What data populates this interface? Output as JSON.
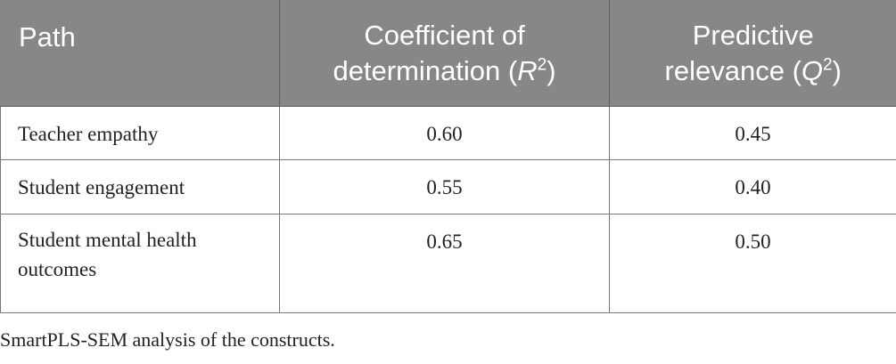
{
  "table": {
    "headers": {
      "path": "Path",
      "r2_prefix": "Coefficient of determination (",
      "r2_symbol": "R",
      "r2_sup": "2",
      "r2_suffix": ")",
      "q2_prefix": "Predictive relevance (",
      "q2_symbol": "Q",
      "q2_sup": "2",
      "q2_suffix": ")"
    },
    "rows": [
      {
        "path": "Teacher empathy",
        "r2": "0.60",
        "q2": "0.45"
      },
      {
        "path": "Student engagement",
        "r2": "0.55",
        "q2": "0.40"
      },
      {
        "path": "Student mental health outcomes",
        "r2": "0.65",
        "q2": "0.50"
      }
    ]
  },
  "footnote": "SmartPLS-SEM analysis of the constructs."
}
